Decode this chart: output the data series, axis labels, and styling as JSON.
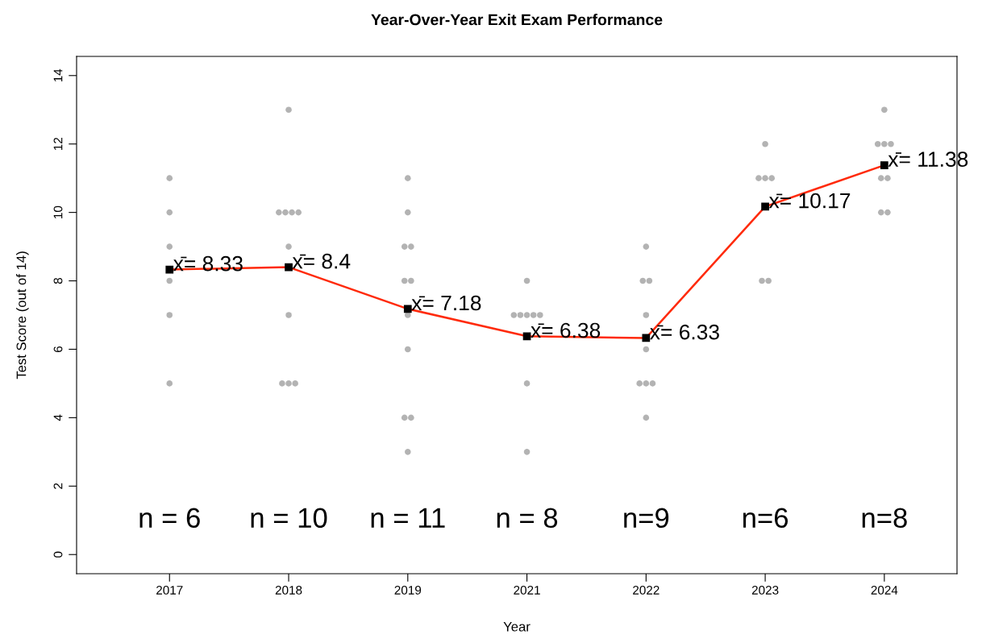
{
  "chart_data": {
    "type": "line",
    "title": "Year-Over-Year Exit Exam Performance",
    "xlabel": "Year",
    "ylabel": "Test Score (out of 14)",
    "categories": [
      "2017",
      "2018",
      "2019",
      "2021",
      "2022",
      "2023",
      "2024"
    ],
    "ylim": [
      -0.56,
      14.56
    ],
    "yticks": [
      0,
      2,
      4,
      6,
      8,
      10,
      12,
      14
    ],
    "grid": false,
    "legend": false,
    "series": [
      {
        "type": "scatter",
        "color": "#b3b3b3",
        "marker": "circle",
        "values": [
          11,
          13,
          11,
          8,
          9,
          12,
          13
        ]
      },
      {
        "type": "scatter",
        "color": "#b3b3b3",
        "marker": "circle",
        "values": [
          10,
          10,
          10,
          7,
          8,
          11,
          12
        ]
      },
      {
        "type": "scatter",
        "color": "#b3b3b3",
        "marker": "circle",
        "values": [
          9,
          10,
          9,
          7,
          8,
          11,
          12
        ]
      },
      {
        "type": "scatter",
        "color": "#b3b3b3",
        "marker": "circle",
        "values": [
          8,
          10,
          9,
          7,
          7,
          11,
          12
        ]
      },
      {
        "type": "scatter",
        "color": "#b3b3b3",
        "marker": "circle",
        "values": [
          7,
          10,
          8,
          7,
          6,
          8,
          11
        ]
      },
      {
        "type": "scatter",
        "color": "#b3b3b3",
        "marker": "circle",
        "values": [
          5,
          9,
          8,
          7,
          5,
          8,
          11
        ]
      },
      {
        "type": "scatter",
        "color": "#b3b3b3",
        "marker": "circle",
        "values": [
          null,
          7,
          7,
          5,
          5,
          null,
          10
        ]
      },
      {
        "type": "scatter",
        "color": "#b3b3b3",
        "marker": "circle",
        "values": [
          null,
          5,
          6,
          3,
          5,
          null,
          10
        ]
      },
      {
        "type": "scatter",
        "color": "#b3b3b3",
        "marker": "circle",
        "values": [
          null,
          5,
          4,
          null,
          4,
          null,
          null
        ]
      },
      {
        "type": "scatter",
        "color": "#b3b3b3",
        "marker": "circle",
        "values": [
          null,
          5,
          4,
          null,
          null,
          null,
          null
        ]
      },
      {
        "type": "scatter",
        "color": "#b3b3b3",
        "marker": "circle",
        "values": [
          null,
          null,
          3,
          null,
          null,
          null,
          null
        ]
      },
      {
        "color": "#ff2a0a",
        "marker": "square",
        "line_style": "solid",
        "values": [
          8.33,
          8.4,
          7.18,
          6.38,
          6.33,
          10.17,
          11.38
        ],
        "value_labels": [
          "x̄= 8.33",
          "x̄= 8.4",
          "x̄= 7.18",
          "x̄= 6.38",
          "x̄= 6.33",
          "x̄= 10.17",
          "x̄= 11.38"
        ]
      }
    ],
    "annotations": [
      "n = 6",
      "n = 10",
      "n = 11",
      "n = 8",
      "n=9",
      "n=6",
      "n=8"
    ]
  }
}
